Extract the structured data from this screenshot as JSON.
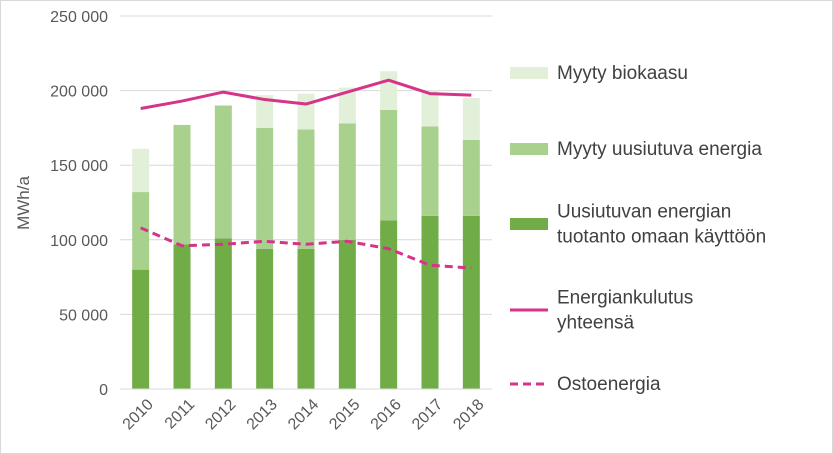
{
  "chart_data": {
    "type": "bar",
    "stacked": true,
    "categories": [
      "2010",
      "2011",
      "2012",
      "2013",
      "2014",
      "2015",
      "2016",
      "2017",
      "2018"
    ],
    "ylabel": "MWh/a",
    "xlabel": "",
    "title": "",
    "ylim": [
      0,
      250000
    ],
    "y_ticks": [
      0,
      50000,
      100000,
      150000,
      200000,
      250000
    ],
    "y_tick_labels": [
      "0",
      "50 000",
      "100 000",
      "150 000",
      "200 000",
      "250 000"
    ],
    "grid": "horizontal",
    "legend_position": "right",
    "series": [
      {
        "name": "Uusiutuvan energian tuotanto omaan käyttöön",
        "name_lines": [
          "Uusiutuvan energian",
          "tuotanto omaan käyttöön"
        ],
        "kind": "bar",
        "color": "#70ad47",
        "values": [
          80000,
          97000,
          101000,
          94000,
          94000,
          100000,
          113000,
          116000,
          116000
        ]
      },
      {
        "name": "Myyty uusiutuva energia",
        "name_lines": [
          "Myyty uusiutuva energia"
        ],
        "kind": "bar",
        "color": "#a9d18e",
        "values": [
          52000,
          80000,
          89000,
          81000,
          80000,
          78000,
          74000,
          60000,
          51000
        ]
      },
      {
        "name": "Myyty biokaasu",
        "name_lines": [
          "Myyty biokaasu"
        ],
        "kind": "bar",
        "color": "#e2f0d9",
        "values": [
          29000,
          0,
          0,
          22000,
          24000,
          24000,
          26000,
          24000,
          28000
        ]
      },
      {
        "name": "Energiankulutus yhteensä",
        "name_lines": [
          "Energiankulutus",
          "yhteensä"
        ],
        "kind": "line",
        "dashed": false,
        "color": "#d6338a",
        "values": [
          188000,
          193000,
          199000,
          194000,
          191000,
          199000,
          207000,
          198000,
          197000
        ]
      },
      {
        "name": "Ostoenergia",
        "name_lines": [
          "Ostoenergia"
        ],
        "kind": "line",
        "dashed": true,
        "color": "#d6338a",
        "values": [
          108000,
          96000,
          97000,
          99000,
          97000,
          99000,
          94000,
          83000,
          81000
        ]
      }
    ],
    "legend_order": [
      "Myyty biokaasu",
      "Myyty uusiutuva energia",
      "Uusiutuvan energian tuotanto omaan käyttöön",
      "Energiankulutus yhteensä",
      "Ostoenergia"
    ]
  },
  "colors": {
    "gridline": "#d9d9d9",
    "axis_text": "#595959",
    "legend_text": "#404040"
  }
}
